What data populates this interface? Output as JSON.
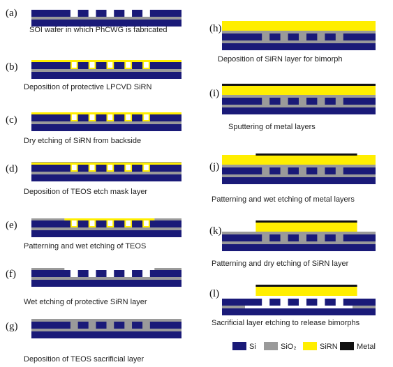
{
  "steps": [
    {
      "label": "(a)",
      "caption": "SOI wafer in which PhCWG is fabricated"
    },
    {
      "label": "(b)",
      "caption": "Deposition of protective LPCVD SiRN"
    },
    {
      "label": "(c)",
      "caption": "Dry etching of SiRN from backside"
    },
    {
      "label": "(d)",
      "caption": "Deposition of TEOS etch mask layer"
    },
    {
      "label": "(e)",
      "caption": "Patterning and wet etching of TEOS"
    },
    {
      "label": "(f)",
      "caption": "Wet etching of protective SiRN layer"
    },
    {
      "label": "(g)",
      "caption": "Deposition of TEOS sacrificial layer"
    },
    {
      "label": "(h)",
      "caption": "Deposition of SiRN layer for bimorph"
    },
    {
      "label": "(i)",
      "caption": "Sputtering of metal layers"
    },
    {
      "label": "(j)",
      "caption": "Patterning and wet etching of metal layers"
    },
    {
      "label": "(k)",
      "caption": "Patterning and dry etching of SiRN layer"
    },
    {
      "label": "(l)",
      "caption": "Sacrificial layer etching to release bimorphs"
    }
  ],
  "legend": [
    "Si",
    "SiO₂",
    "SiRN",
    "Metal"
  ]
}
